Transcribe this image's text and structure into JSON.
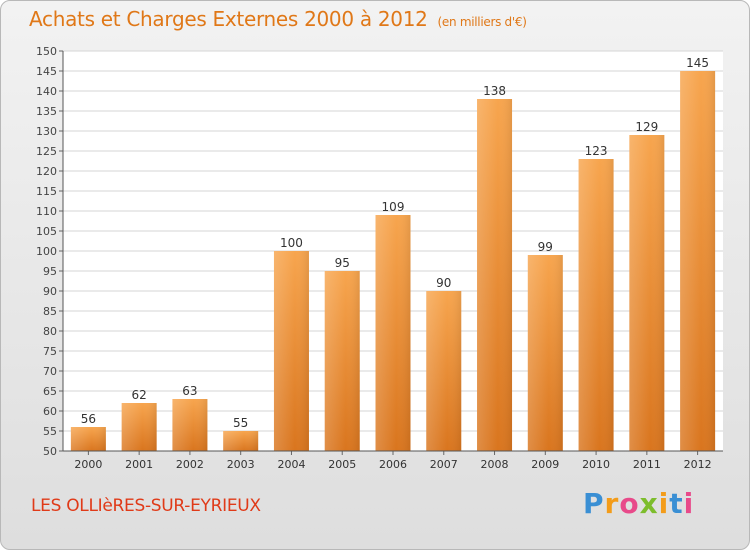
{
  "chart_data": {
    "type": "bar",
    "title": "Achats et Charges Externes 2000 à 2012",
    "unit_note": "(en milliers d'€)",
    "xlabel": "",
    "ylabel": "",
    "categories": [
      "2000",
      "2001",
      "2002",
      "2003",
      "2004",
      "2005",
      "2006",
      "2007",
      "2008",
      "2009",
      "2010",
      "2011",
      "2012"
    ],
    "values": [
      56,
      62,
      63,
      55,
      100,
      95,
      109,
      90,
      138,
      99,
      123,
      129,
      145
    ],
    "ylim": [
      50,
      150
    ],
    "ytick_step": 5,
    "grid": true,
    "legend": "none",
    "bar_color_top": "#f7a54e",
    "bar_color_bottom": "#d9751e"
  },
  "footer": {
    "town": "LES OLLIèRES-SUR-EYRIEUX",
    "logo_letters": [
      "P",
      "r",
      "o",
      "x",
      "i",
      "t",
      "i"
    ],
    "logo_colors": [
      "#3a8fd4",
      "#f39c1a",
      "#e84a8a",
      "#7dbd2c",
      "#f39c1a",
      "#3a8fd4",
      "#e84a8a"
    ]
  }
}
